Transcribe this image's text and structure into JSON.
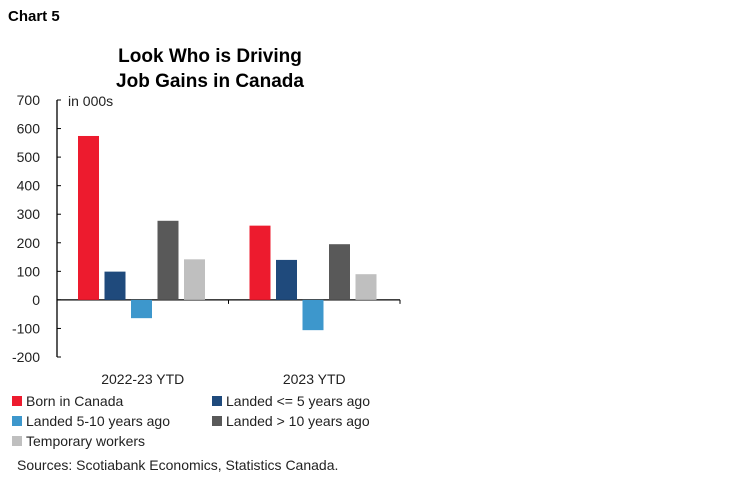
{
  "chart_label": "Chart 5",
  "chart_data": {
    "type": "bar",
    "title": "Look Who is Driving Job Gains in Canada",
    "title_lines": [
      "Look Who is Driving",
      "Job Gains in Canada"
    ],
    "unit_label": "in 000s",
    "categories": [
      "2022-23 YTD",
      "2023 YTD"
    ],
    "series": [
      {
        "name": "Born in Canada",
        "color": "#ED1B2E",
        "values": [
          574,
          260
        ]
      },
      {
        "name": "Landed <= 5 years ago",
        "color": "#1F4A7C",
        "values": [
          99,
          140
        ]
      },
      {
        "name": "Landed 5-10 years ago",
        "color": "#3D97CC",
        "values": [
          -64,
          -106
        ]
      },
      {
        "name": "Landed > 10 years ago",
        "color": "#595959",
        "values": [
          277,
          195
        ]
      },
      {
        "name": "Temporary workers",
        "color": "#BFBFBF",
        "values": [
          142,
          90
        ]
      }
    ],
    "ylim": [
      -200,
      700
    ],
    "yticks": [
      "700",
      "600",
      "500",
      "400",
      "300",
      "200",
      "100",
      "0",
      "-100",
      "-200"
    ],
    "grid": false,
    "legend": "bottom"
  },
  "source": "Sources: Scotiabank Economics, Statistics Canada."
}
